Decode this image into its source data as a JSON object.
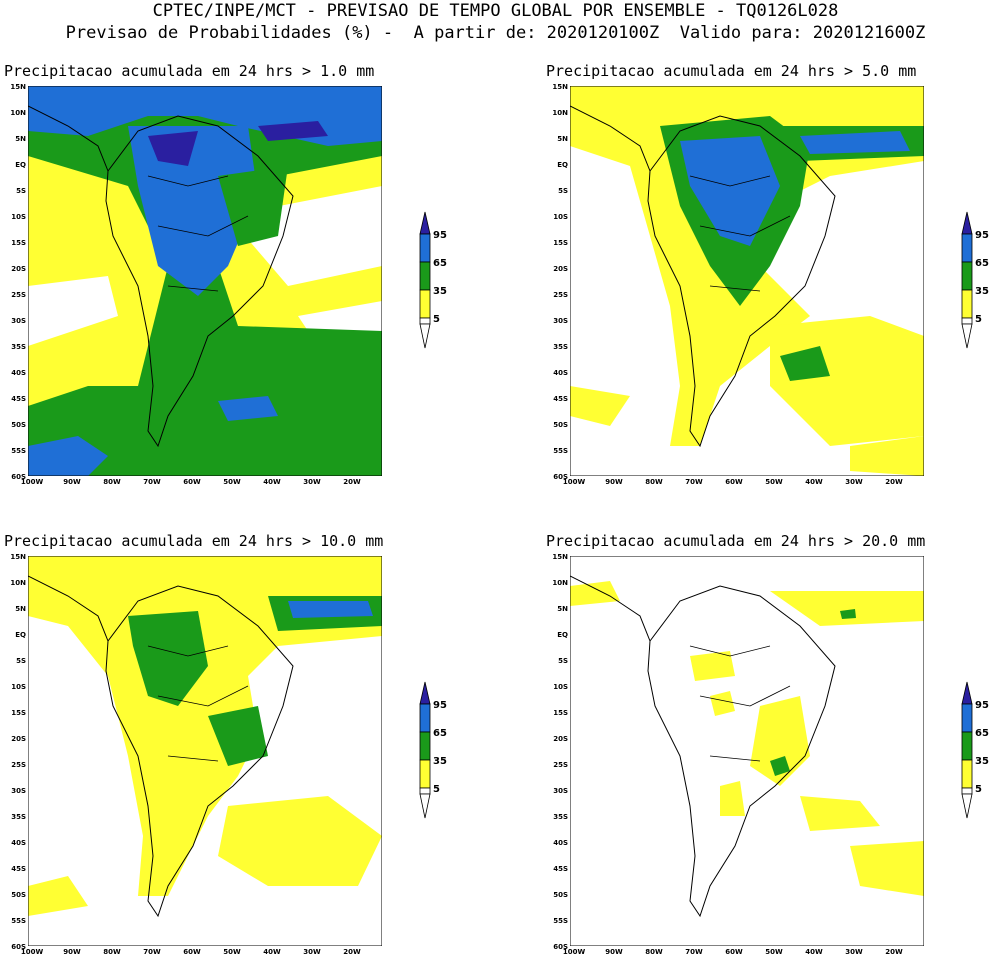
{
  "header": {
    "line1": "CPTEC/INPE/MCT - PREVISAO DE TEMPO GLOBAL POR ENSEMBLE - TQ0126L028",
    "line2": "Previsao de Probabilidades (%) -  A partir de: 2020120100Z  Valido para: 2020121600Z"
  },
  "lat_labels": [
    "15N",
    "10N",
    "5N",
    "EQ",
    "5S",
    "10S",
    "15S",
    "20S",
    "25S",
    "30S",
    "35S",
    "40S",
    "45S",
    "50S",
    "55S",
    "60S"
  ],
  "lon_labels": [
    "100W",
    "90W",
    "80W",
    "70W",
    "60W",
    "50W",
    "40W",
    "30W",
    "20W"
  ],
  "colorbar": {
    "levels": [
      "95",
      "65",
      "35",
      "5"
    ],
    "colors": {
      "c95": "#2a1fa0",
      "c65": "#1f6fd6",
      "c35": "#1a9a1a",
      "c5": "#ffff33"
    }
  },
  "panels": [
    {
      "title": "Precipitacao acumulada em 24 hrs > 1.0 mm",
      "id": "p1"
    },
    {
      "title": "Precipitacao acumulada em 24 hrs > 5.0 mm",
      "id": "p2"
    },
    {
      "title": "Precipitacao acumulada em 24 hrs > 10.0 mm",
      "id": "p3"
    },
    {
      "title": "Precipitacao acumulada em 24 hrs > 20.0 mm",
      "id": "p4"
    }
  ]
}
